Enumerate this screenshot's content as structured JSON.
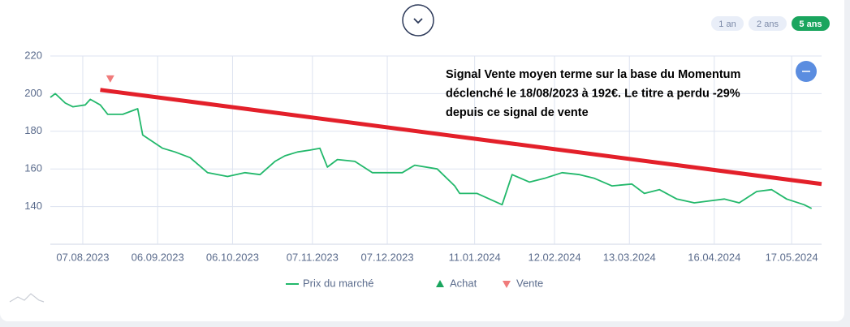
{
  "chart_data": {
    "type": "line",
    "range_buttons": [
      {
        "label": "1 an",
        "active": false
      },
      {
        "label": "2 ans",
        "active": false
      },
      {
        "label": "5 ans",
        "active": true
      }
    ],
    "annotation": [
      "Signal Vente moyen terme sur la base du Momentum",
      "déclenché le 18/08/2023 à 192€. Le titre a perdu -29%",
      "depuis ce signal de vente"
    ],
    "x": [
      "25.07.2023",
      "27.07.2023",
      "31.07.2023",
      "03.08.2023",
      "08.08.2023",
      "10.08.2023",
      "14.08.2023",
      "17.08.2023",
      "23.08.2023",
      "29.08.2023",
      "31.08.2023",
      "08.09.2023",
      "13.09.2023",
      "19.09.2023",
      "26.09.2023",
      "04.10.2023",
      "11.10.2023",
      "17.10.2023",
      "23.10.2023",
      "27.10.2023",
      "01.11.2023",
      "06.11.2023",
      "10.11.2023",
      "13.11.2023",
      "17.11.2023",
      "24.11.2023",
      "01.12.2023",
      "07.12.2023",
      "13.12.2023",
      "18.12.2023",
      "27.12.2023",
      "03.01.2024",
      "05.01.2024",
      "12.01.2024",
      "22.01.2024",
      "26.01.2024",
      "02.02.2024",
      "08.02.2024",
      "15.02.2024",
      "22.02.2024",
      "28.02.2024",
      "06.03.2024",
      "14.03.2024",
      "19.03.2024",
      "25.03.2024",
      "01.04.2024",
      "08.04.2024",
      "14.04.2024",
      "20.04.2024",
      "26.04.2024",
      "03.05.2024",
      "09.05.2024",
      "15.05.2024",
      "22.05.2024",
      "25.05.2024"
    ],
    "series": [
      {
        "name": "Prix du marché",
        "color": "#22b86b",
        "values": [
          198,
          200,
          195,
          193,
          194,
          197,
          194,
          189,
          189,
          192,
          178,
          171,
          169,
          166,
          158,
          156,
          158,
          157,
          164,
          167,
          169,
          170,
          171,
          161,
          165,
          164,
          158,
          158,
          158,
          162,
          160,
          151,
          147,
          147,
          141,
          157,
          153,
          155,
          158,
          157,
          155,
          151,
          152,
          147,
          149,
          144,
          142,
          143,
          144,
          142,
          148,
          149,
          144,
          141,
          139
        ]
      }
    ],
    "signal_legend": [
      {
        "name": "Achat",
        "color": "#1aa55e"
      },
      {
        "name": "Vente",
        "color": "#f07b7b"
      }
    ],
    "signals": [
      {
        "x": "18.08.2023",
        "value": 208,
        "color": "#f07b7b"
      }
    ],
    "trend_line": {
      "x": [
        "14.08.2023",
        "29.05.2024"
      ],
      "values": [
        202,
        152
      ],
      "color": "#e3202a"
    },
    "xlim": [
      "25.07.2023",
      "29.05.2024"
    ],
    "xticks": [
      "07.08.2023",
      "06.09.2023",
      "06.10.2023",
      "07.11.2023",
      "07.12.2023",
      "11.01.2024",
      "12.02.2024",
      "13.03.2024",
      "16.04.2024",
      "17.05.2024"
    ],
    "ylim": [
      120,
      220
    ],
    "yticks": [
      140,
      160,
      180,
      200,
      220
    ],
    "grid": true
  }
}
